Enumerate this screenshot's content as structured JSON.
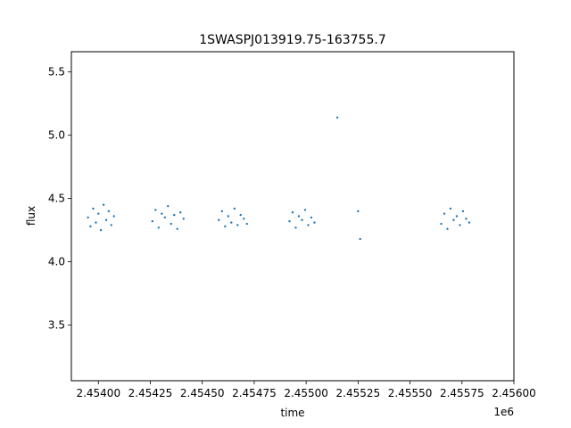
{
  "chart_data": {
    "type": "scatter",
    "title": "1SWASPJ013919.75-163755.7",
    "xlabel": "time",
    "ylabel": "flux",
    "x_offset_label": "1e6",
    "xlim": [
      2453870,
      2456000
    ],
    "ylim": [
      3.06,
      5.66
    ],
    "x_ticks": [
      2454000,
      2454250,
      2454500,
      2454750,
      2455000,
      2455250,
      2455500,
      2455750,
      2456000
    ],
    "x_tick_labels": [
      "2.45400",
      "2.45425",
      "2.45450",
      "2.45475",
      "2.45500",
      "2.45525",
      "2.45550",
      "2.45575",
      "2.45600"
    ],
    "y_ticks": [
      3.5,
      4.0,
      4.5,
      5.0,
      5.5
    ],
    "y_tick_labels": [
      "3.5",
      "4.0",
      "4.5",
      "5.0",
      "5.5"
    ],
    "grid": false,
    "legend": "none",
    "marker_color": "#1f77b4",
    "series": [
      {
        "x": [
          2453950,
          2453962,
          2453975,
          2453988,
          2454000,
          2454012,
          2454025,
          2454038,
          2454050,
          2454062,
          2454075,
          2454260,
          2454275,
          2454290,
          2454305,
          2454320,
          2454335,
          2454350,
          2454365,
          2454380,
          2454395,
          2454410,
          2454580,
          2454595,
          2454610,
          2454625,
          2454640,
          2454655,
          2454670,
          2454685,
          2454700,
          2454715,
          2454920,
          2454935,
          2454950,
          2454965,
          2454980,
          2454995,
          2455010,
          2455025,
          2455040,
          2455150,
          2455250,
          2455260,
          2455650,
          2455665,
          2455680,
          2455695,
          2455710,
          2455725,
          2455740,
          2455755,
          2455770,
          2455785
        ],
        "y": [
          4.35,
          4.28,
          4.42,
          4.31,
          4.38,
          4.25,
          4.45,
          4.33,
          4.4,
          4.29,
          4.36,
          4.32,
          4.41,
          4.27,
          4.38,
          4.35,
          4.44,
          4.3,
          4.37,
          4.26,
          4.39,
          4.34,
          4.33,
          4.4,
          4.28,
          4.36,
          4.31,
          4.42,
          4.29,
          4.37,
          4.34,
          4.3,
          4.32,
          4.39,
          4.27,
          4.36,
          4.33,
          4.41,
          4.29,
          4.35,
          4.31,
          5.14,
          4.4,
          4.18,
          4.3,
          4.38,
          4.26,
          4.42,
          4.33,
          4.36,
          4.29,
          4.4,
          4.34,
          4.31
        ]
      }
    ]
  }
}
